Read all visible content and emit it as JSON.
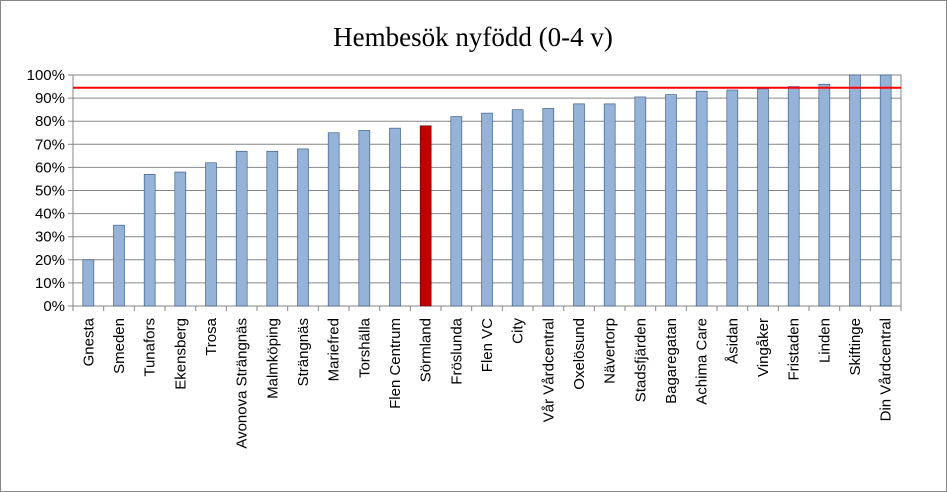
{
  "chart_data": {
    "type": "bar",
    "title": "Hembesök nyfödd (0-4 v)",
    "xlabel": "",
    "ylabel": "",
    "ylim": [
      0,
      1
    ],
    "yticks": [
      "0%",
      "10%",
      "20%",
      "30%",
      "40%",
      "50%",
      "60%",
      "70%",
      "80%",
      "90%",
      "100%"
    ],
    "grid": true,
    "legend": "none",
    "categories": [
      "Gnesta",
      "Smeden",
      "Tunafors",
      "Ekensberg",
      "Trosa",
      "Avonova Strängnäs",
      "Malmköping",
      "Strängnäs",
      "Mariefred",
      "Torshälla",
      "Flen Centrum",
      "Sörmland",
      "Fröslunda",
      "Flen VC",
      "City",
      "Vår Vårdcentral",
      "Oxelösund",
      "Nävertorp",
      "Stadsfjärden",
      "Bagaregatan",
      "Achima Care",
      "Åsidan",
      "Vingåker",
      "Fristaden",
      "Linden",
      "Skiftinge",
      "Din Vårdcentral"
    ],
    "values": [
      0.2,
      0.35,
      0.57,
      0.58,
      0.62,
      0.67,
      0.67,
      0.68,
      0.75,
      0.76,
      0.77,
      0.78,
      0.82,
      0.835,
      0.85,
      0.855,
      0.875,
      0.875,
      0.905,
      0.915,
      0.93,
      0.935,
      0.94,
      0.95,
      0.96,
      1.0,
      1.0
    ],
    "highlight_category": "Sörmland",
    "reference_line": 0.945,
    "colors": {
      "bar": "#95b3d7",
      "bar_edge": "#2f4f7f",
      "highlight": "#c00000",
      "highlight_edge": "#5a0000",
      "reference_line": "#ff0000",
      "grid": "#868686",
      "axis": "#868686"
    }
  }
}
